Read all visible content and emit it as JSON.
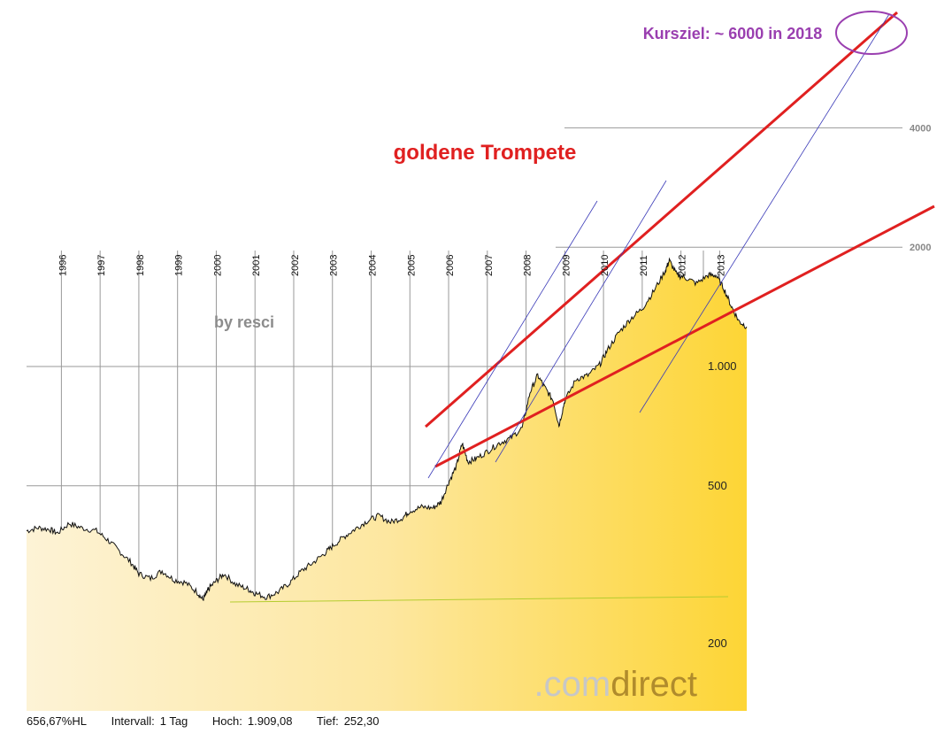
{
  "chart_data": {
    "type": "area",
    "title": "goldene Trompete",
    "annotation_target": "Kursziel: ~ 6000 in 2018",
    "author": "by resci",
    "brand": {
      "prefix": ".com",
      "suffix": "direct"
    },
    "y_scale": "log",
    "ylim": [
      150,
      6800
    ],
    "y_ticks": [
      "200",
      "500",
      "1.000"
    ],
    "y_ticks_extended": [
      "2000",
      "4000"
    ],
    "x_labels": [
      "1996",
      "1997",
      "1998",
      "1999",
      "2000",
      "2001",
      "2002",
      "2003",
      "2004",
      "2005",
      "2006",
      "2007",
      "2008",
      "2009",
      "2010",
      "2011",
      "2012",
      "2013"
    ],
    "xlim": [
      1995.1,
      2019.0
    ],
    "colors": {
      "area_light": "#fdf3d6",
      "area_dark": "#fdd535",
      "line": "#111111",
      "trend_red": "#e02020",
      "trend_blue": "#3a3ab8",
      "target_circle": "#9a3fb0",
      "baseline_green": "#b5cc2e"
    },
    "series": [
      {
        "x": [
          1995.1,
          1995.4,
          1995.7,
          1995.9,
          1996.2,
          1996.5,
          1996.9,
          1997.2,
          1997.5,
          1997.8,
          1998.0,
          1998.3,
          1998.6,
          1998.9,
          1999.2,
          1999.5,
          1999.65,
          1999.75,
          1999.8,
          2000.0,
          2000.2,
          2000.5,
          2000.8,
          2001.0,
          2001.3,
          2001.6,
          2001.9,
          2002.2,
          2002.5,
          2002.8,
          2003.0,
          2003.3,
          2003.6,
          2003.9,
          2004.2,
          2004.5,
          2004.8,
          2005.0,
          2005.3,
          2005.6,
          2005.8,
          2006.0,
          2006.2,
          2006.35,
          2006.5,
          2006.7,
          2007.0,
          2007.3,
          2007.6,
          2007.9,
          2008.1,
          2008.3,
          2008.5,
          2008.7,
          2008.85,
          2009.0,
          2009.3,
          2009.6,
          2009.9,
          2010.1,
          2010.4,
          2010.7,
          2011.0,
          2011.3,
          2011.6,
          2011.7,
          2011.9,
          2012.1,
          2012.4,
          2012.7,
          2012.9,
          2013.1,
          2013.3,
          2013.5,
          2013.7
        ],
        "y": [
          385,
          392,
          388,
          380,
          402,
          392,
          385,
          365,
          342,
          320,
          300,
          292,
          305,
          290,
          285,
          270,
          258,
          268,
          275,
          288,
          300,
          282,
          275,
          268,
          262,
          270,
          285,
          305,
          320,
          338,
          352,
          372,
          390,
          408,
          420,
          405,
          415,
          432,
          442,
          440,
          455,
          510,
          560,
          640,
          575,
          585,
          610,
          640,
          660,
          700,
          860,
          950,
          880,
          820,
          710,
          820,
          930,
          950,
          1010,
          1100,
          1220,
          1320,
          1400,
          1550,
          1750,
          1850,
          1700,
          1680,
          1620,
          1700,
          1700,
          1580,
          1420,
          1300,
          1260
        ]
      }
    ],
    "trendlines": [
      "red_upper",
      "red_lower",
      "blue_channel"
    ]
  },
  "footer": {
    "change": "656,67%HL",
    "interval_label": "Intervall:",
    "interval_value": "1 Tag",
    "high_label": "Hoch:",
    "high_value": "1.909,08",
    "low_label": "Tief:",
    "low_value": "252,30"
  }
}
